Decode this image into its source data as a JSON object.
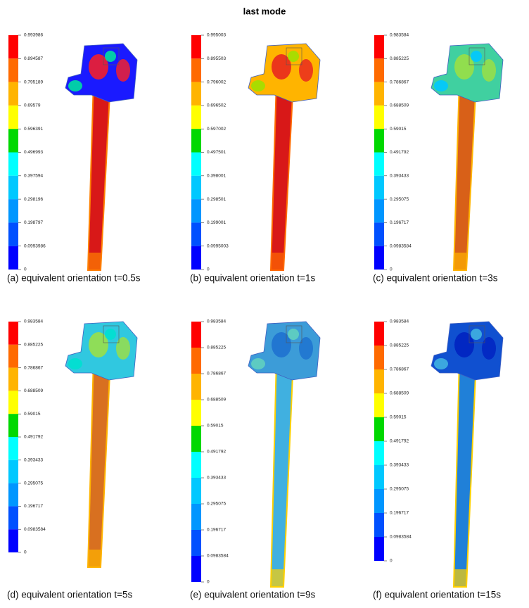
{
  "title": "last mode",
  "panels": [
    {
      "caption": "(a)  equivalent orientation t=0.5s",
      "legend": [
        "0.993986",
        "0.894587",
        "0.795189",
        "0.69579",
        "0.596391",
        "0.496993",
        "0.397594",
        "0.298196",
        "0.198797",
        "0.0993986",
        "0"
      ]
    },
    {
      "caption": "(b)  equivalent orientation t=1s",
      "legend": [
        "0.995003",
        "0.895503",
        "0.796002",
        "0.696502",
        "0.597002",
        "0.497501",
        "0.398001",
        "0.298501",
        "0.199001",
        "0.0995003",
        "0"
      ]
    },
    {
      "caption": "(c)  equivalent orientation t=3s",
      "legend": [
        "0.983584",
        "0.885225",
        "0.786867",
        "0.688509",
        "0.59015",
        "0.491792",
        "0.393433",
        "0.295075",
        "0.196717",
        "0.0983584",
        "0"
      ]
    },
    {
      "caption": "(d)  equivalent orientation t=5s",
      "legend": [
        "0.983584",
        "0.885225",
        "0.786867",
        "0.688509",
        "0.59015",
        "0.491792",
        "0.393433",
        "0.295075",
        "0.196717",
        "0.0983584",
        "0"
      ]
    },
    {
      "caption": "(e)  equivalent orientation t=9s",
      "legend": [
        "0.983584",
        "0.885225",
        "0.786867",
        "0.688509",
        "0.59015",
        "0.491792",
        "0.393433",
        "0.295075",
        "0.196717",
        "0.0983584",
        "0"
      ]
    },
    {
      "caption": "(f)  equivalent orientation t=15s",
      "legend": [
        "0.983584",
        "0.885225",
        "0.786867",
        "0.688509",
        "0.59015",
        "0.491792",
        "0.393433",
        "0.295075",
        "0.196717",
        "0.0983584",
        "0"
      ]
    }
  ]
}
